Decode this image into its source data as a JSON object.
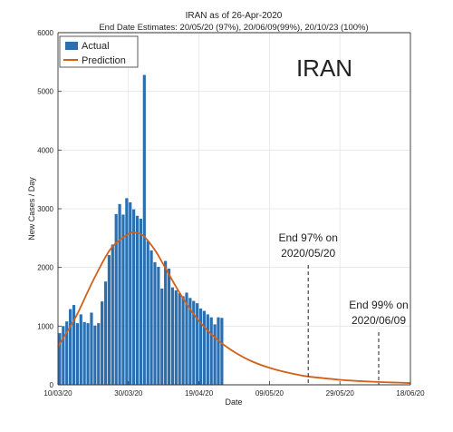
{
  "chart_data": {
    "type": "bar",
    "title": "IRAN as of 26-Apr-2020",
    "subtitle": "End Date Estimates: 20/05/20 (97%), 20/06/09(99%), 20/10/23 (100%)",
    "big_label": "IRAN",
    "xlabel": "Date",
    "ylabel": "New Cases / Day",
    "xlim_day": [
      0,
      100
    ],
    "ylim": [
      0,
      6000
    ],
    "y_ticks": [
      0,
      1000,
      2000,
      3000,
      4000,
      5000,
      6000
    ],
    "x_ticks": [
      {
        "day": 0,
        "label": "10/03/20"
      },
      {
        "day": 20,
        "label": "30/03/20"
      },
      {
        "day": 40,
        "label": "19/04/20"
      },
      {
        "day": 60,
        "label": "09/05/20"
      },
      {
        "day": 80,
        "label": "29/05/20"
      },
      {
        "day": 100,
        "label": "18/06/20"
      }
    ],
    "grid": true,
    "legend_position": "top-left",
    "series": [
      {
        "name": "Actual",
        "kind": "bar",
        "color": "#2a6fb0",
        "x_day": [
          0,
          1,
          2,
          3,
          4,
          5,
          6,
          7,
          8,
          9,
          10,
          11,
          12,
          13,
          14,
          15,
          16,
          17,
          18,
          19,
          20,
          21,
          22,
          23,
          24,
          25,
          26,
          27,
          28,
          29,
          30,
          31,
          32,
          33,
          34,
          35,
          36,
          37,
          38,
          39,
          40,
          41,
          42,
          43,
          44,
          45,
          46
        ],
        "values": [
          880,
          1000,
          1080,
          1290,
          1360,
          1050,
          1200,
          1070,
          1050,
          1230,
          1010,
          1050,
          1420,
          1760,
          2210,
          2390,
          2910,
          3080,
          2900,
          3180,
          3110,
          2990,
          2880,
          2830,
          5280,
          2450,
          2290,
          2090,
          2010,
          1640,
          2110,
          1980,
          1660,
          1610,
          1560,
          1510,
          1570,
          1480,
          1430,
          1390,
          1300,
          1260,
          1200,
          1150,
          1030,
          1150,
          1140
        ]
      },
      {
        "name": "Prediction",
        "kind": "line",
        "color": "#d2601a",
        "x_day": [
          0,
          5,
          10,
          15,
          20,
          22,
          24,
          26,
          28,
          30,
          35,
          40,
          45,
          50,
          55,
          60,
          65,
          70,
          75,
          80,
          85,
          90,
          95,
          100
        ],
        "values": [
          650,
          1150,
          1780,
          2320,
          2570,
          2590,
          2550,
          2420,
          2250,
          2040,
          1520,
          1090,
          780,
          560,
          400,
          290,
          210,
          150,
          115,
          85,
          65,
          50,
          40,
          30
        ]
      }
    ],
    "annotations": [
      {
        "text": "End 97% on",
        "text2": "2020/05/20",
        "x_day": 71
      },
      {
        "text": "End 99% on",
        "text2": "2020/06/09",
        "x_day": 91
      }
    ]
  }
}
